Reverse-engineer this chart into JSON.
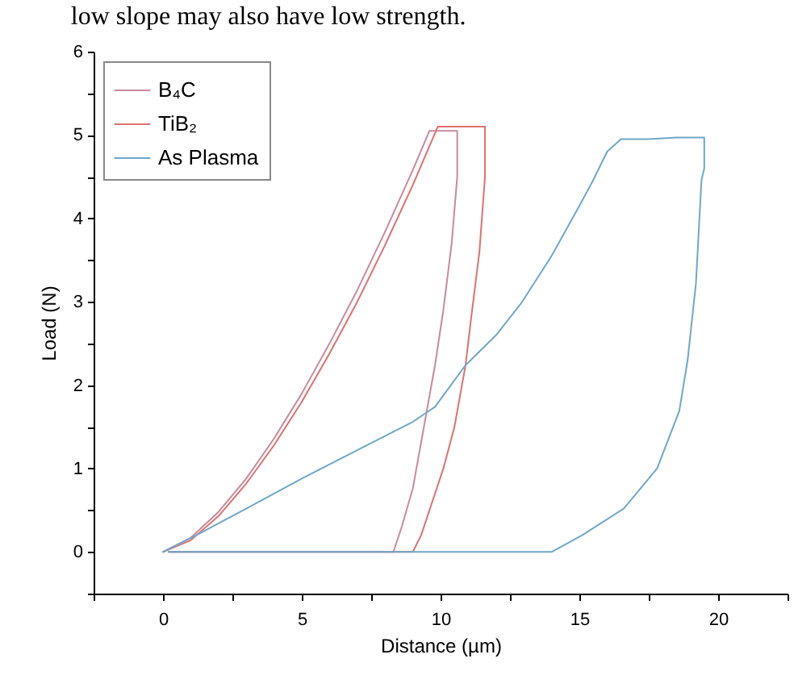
{
  "chart_data": {
    "type": "line",
    "annotations": [
      "low slope may also have low strength."
    ],
    "xlabel": "Distance (µm)",
    "ylabel": "Load (N)",
    "xlim": [
      -2.5,
      22.5
    ],
    "ylim": [
      -0.5,
      6
    ],
    "xticks": [
      {
        "value": -2.5,
        "label": null
      },
      0,
      {
        "value": 2.5,
        "label": null
      },
      5,
      {
        "value": 7.5,
        "label": null
      },
      10,
      {
        "value": 12.5,
        "label": null
      },
      15,
      {
        "value": 17.5,
        "label": null
      },
      20,
      {
        "value": 22.5,
        "label": null
      }
    ],
    "yticks": [
      {
        "value": -0.5,
        "label": null
      },
      0,
      {
        "value": 0.5,
        "label": null
      },
      1,
      {
        "value": 1.5,
        "label": null
      },
      2,
      {
        "value": 2.5,
        "label": null
      },
      3,
      {
        "value": 3.5,
        "label": null
      },
      4,
      {
        "value": 4.5,
        "label": null
      },
      5,
      {
        "value": 5.5,
        "label": null
      },
      6
    ],
    "grid": false,
    "legend": "top left",
    "line_style": "solid",
    "marker": "none",
    "series": [
      {
        "name": "B₄C",
        "color": "#c98a9e",
        "x": [
          0,
          1,
          2,
          3,
          4,
          5,
          6,
          7,
          8,
          9,
          9.6,
          10,
          10.6,
          10.6,
          10.4,
          10.1,
          9.8,
          9.4,
          9,
          8.6,
          8.3,
          4,
          0.2
        ],
        "values": [
          0,
          0.17,
          0.48,
          0.88,
          1.36,
          1.9,
          2.5,
          3.14,
          3.84,
          4.58,
          5.05,
          5.05,
          5.05,
          4.5,
          3.7,
          2.9,
          2.24,
          1.5,
          0.76,
          0.3,
          0,
          0,
          0
        ]
      },
      {
        "name": "TiB₂",
        "color": "#e07070",
        "x": [
          0,
          1,
          2,
          3,
          4,
          5,
          6,
          7,
          8,
          9,
          9.9,
          10.5,
          11.6,
          11.6,
          11.4,
          11.1,
          10.9,
          10.5,
          10.1,
          9.7,
          9.3,
          9,
          4,
          0.2
        ],
        "values": [
          0,
          0.14,
          0.43,
          0.82,
          1.28,
          1.8,
          2.38,
          3.0,
          3.68,
          4.4,
          5.1,
          5.1,
          5.1,
          4.5,
          3.6,
          2.8,
          2.24,
          1.5,
          1.0,
          0.6,
          0.2,
          0,
          0,
          0
        ]
      },
      {
        "name": "As Plasma",
        "color": "#6fa8c8",
        "x": [
          0,
          1.2,
          3,
          5,
          7,
          9,
          9.8,
          10.9,
          12,
          12.9,
          14,
          15,
          15.5,
          16,
          16.5,
          17.5,
          18.5,
          19.5,
          19.5,
          19.4,
          19.2,
          18.9,
          18.6,
          17.8,
          16.6,
          15.1,
          14,
          7,
          0.2
        ],
        "values": [
          0,
          0.2,
          0.52,
          0.88,
          1.22,
          1.56,
          1.74,
          2.24,
          2.6,
          2.98,
          3.55,
          4.15,
          4.46,
          4.8,
          4.95,
          4.95,
          4.97,
          4.97,
          4.6,
          4.46,
          3.22,
          2.3,
          1.69,
          1.0,
          0.52,
          0.2,
          0,
          0,
          0
        ]
      }
    ]
  }
}
